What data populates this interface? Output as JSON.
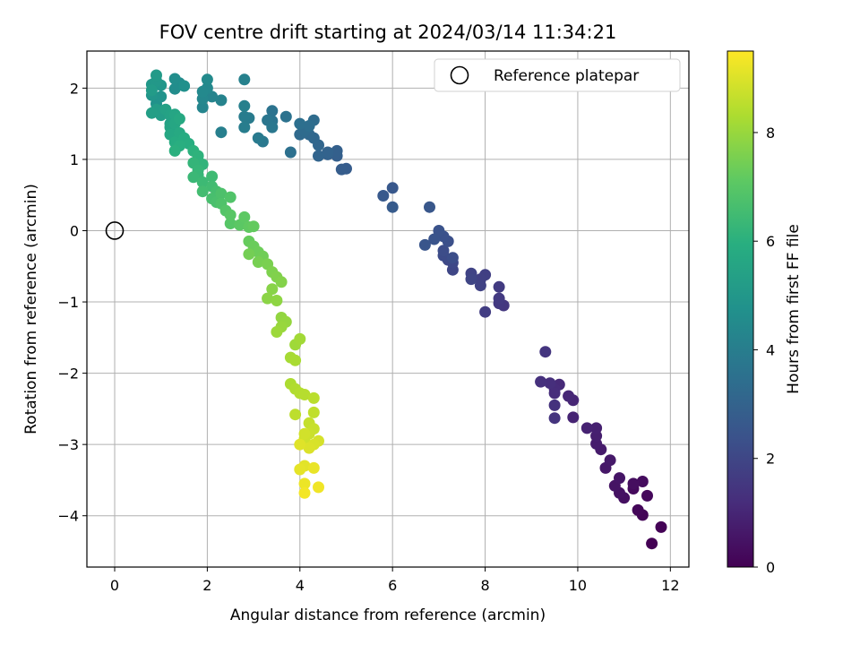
{
  "chart_data": {
    "type": "scatter",
    "title": "FOV centre drift starting at 2024/03/14 11:34:21",
    "xlabel": "Angular distance from reference (arcmin)",
    "ylabel": "Rotation from reference (arcmin)",
    "colorbar_label": "Hours from first FF file",
    "xlim": [
      -0.6,
      12.4
    ],
    "ylim": [
      -4.72,
      2.52
    ],
    "x_ticks": [
      0,
      2,
      4,
      6,
      8,
      10,
      12
    ],
    "y_ticks": [
      -4,
      -3,
      -2,
      -1,
      0,
      1,
      2
    ],
    "colorbar_range": [
      0,
      9.5
    ],
    "colorbar_ticks": [
      0,
      2,
      4,
      6,
      8
    ],
    "colormap": "viridis",
    "grid": true,
    "legend_position": "top-right",
    "reference_point": {
      "name": "Reference platepar",
      "x": 0.0,
      "y": 0.0
    },
    "points": [
      [
        11.6,
        -4.39,
        0.0
      ],
      [
        11.8,
        -4.16,
        0.05
      ],
      [
        11.4,
        -3.99,
        0.1
      ],
      [
        11.3,
        -3.92,
        0.15
      ],
      [
        11.5,
        -3.72,
        0.2
      ],
      [
        11.2,
        -3.62,
        0.25
      ],
      [
        11.4,
        -3.52,
        0.3
      ],
      [
        11.2,
        -3.55,
        0.35
      ],
      [
        11.0,
        -3.75,
        0.4
      ],
      [
        10.9,
        -3.68,
        0.45
      ],
      [
        10.8,
        -3.58,
        0.5
      ],
      [
        10.9,
        -3.47,
        0.55
      ],
      [
        10.6,
        -3.33,
        0.6
      ],
      [
        10.7,
        -3.22,
        0.65
      ],
      [
        10.5,
        -3.07,
        0.7
      ],
      [
        10.4,
        -2.99,
        0.75
      ],
      [
        10.4,
        -2.88,
        0.8
      ],
      [
        10.4,
        -2.77,
        0.85
      ],
      [
        10.2,
        -2.77,
        0.9
      ],
      [
        9.9,
        -2.62,
        0.95
      ],
      [
        9.9,
        -2.38,
        1.0
      ],
      [
        9.8,
        -2.32,
        1.05
      ],
      [
        9.6,
        -2.16,
        1.1
      ],
      [
        9.5,
        -2.22,
        1.15
      ],
      [
        9.5,
        -2.28,
        1.2
      ],
      [
        9.4,
        -2.14,
        1.25
      ],
      [
        9.2,
        -2.12,
        1.3
      ],
      [
        9.5,
        -2.45,
        1.35
      ],
      [
        9.5,
        -2.63,
        1.4
      ],
      [
        9.3,
        -1.7,
        1.45
      ],
      [
        8.4,
        -1.05,
        1.5
      ],
      [
        8.3,
        -1.02,
        1.55
      ],
      [
        8.3,
        -0.95,
        1.6
      ],
      [
        8.3,
        -0.79,
        1.65
      ],
      [
        8.0,
        -1.14,
        1.7
      ],
      [
        8.0,
        -0.62,
        1.75
      ],
      [
        7.9,
        -0.68,
        1.8
      ],
      [
        7.9,
        -0.77,
        1.85
      ],
      [
        7.7,
        -0.6,
        1.9
      ],
      [
        7.7,
        -0.68,
        1.95
      ],
      [
        7.3,
        -0.55,
        2.0
      ],
      [
        7.3,
        -0.45,
        2.05
      ],
      [
        7.2,
        -0.41,
        2.1
      ],
      [
        7.1,
        -0.35,
        2.15
      ],
      [
        7.1,
        -0.28,
        2.2
      ],
      [
        7.3,
        -0.38,
        2.25
      ],
      [
        7.2,
        -0.15,
        2.3
      ],
      [
        7.1,
        -0.08,
        2.35
      ],
      [
        7.0,
        0.0,
        2.4
      ],
      [
        6.9,
        -0.12,
        2.45
      ],
      [
        6.7,
        -0.2,
        2.5
      ],
      [
        6.8,
        0.33,
        2.55
      ],
      [
        6.0,
        0.6,
        2.6
      ],
      [
        5.8,
        0.49,
        2.65
      ],
      [
        6.0,
        0.33,
        2.7
      ],
      [
        5.0,
        0.87,
        2.75
      ],
      [
        4.9,
        0.86,
        2.8
      ],
      [
        4.8,
        1.05,
        2.85
      ],
      [
        4.8,
        1.12,
        2.9
      ],
      [
        4.6,
        1.07,
        2.95
      ],
      [
        4.6,
        1.1,
        3.0
      ],
      [
        4.4,
        1.05,
        3.05
      ],
      [
        4.4,
        1.2,
        3.1
      ],
      [
        4.3,
        1.3,
        3.15
      ],
      [
        4.2,
        1.35,
        3.2
      ],
      [
        4.0,
        1.35,
        3.25
      ],
      [
        4.1,
        1.4,
        3.3
      ],
      [
        4.3,
        1.55,
        3.35
      ],
      [
        4.2,
        1.47,
        3.4
      ],
      [
        4.0,
        1.5,
        3.45
      ],
      [
        3.8,
        1.1,
        3.5
      ],
      [
        3.7,
        1.6,
        3.55
      ],
      [
        3.4,
        1.68,
        3.6
      ],
      [
        3.4,
        1.54,
        3.65
      ],
      [
        3.3,
        1.55,
        3.7
      ],
      [
        3.4,
        1.45,
        3.75
      ],
      [
        3.2,
        1.25,
        3.8
      ],
      [
        3.1,
        1.3,
        3.85
      ],
      [
        2.9,
        1.58,
        3.9
      ],
      [
        2.8,
        1.6,
        3.95
      ],
      [
        2.8,
        1.45,
        4.0
      ],
      [
        2.3,
        1.38,
        4.05
      ],
      [
        2.8,
        1.75,
        4.1
      ],
      [
        2.8,
        2.12,
        4.15
      ],
      [
        2.3,
        1.83,
        4.2
      ],
      [
        2.1,
        1.88,
        4.25
      ],
      [
        1.9,
        1.73,
        4.3
      ],
      [
        1.9,
        1.85,
        4.35
      ],
      [
        2.0,
        2.0,
        4.4
      ],
      [
        1.9,
        1.95,
        4.45
      ],
      [
        2.0,
        2.12,
        4.5
      ],
      [
        1.4,
        2.07,
        4.55
      ],
      [
        1.3,
        1.99,
        4.6
      ],
      [
        1.3,
        2.13,
        4.65
      ],
      [
        1.5,
        2.03,
        4.7
      ],
      [
        0.9,
        1.78,
        4.8
      ],
      [
        1.0,
        1.88,
        4.85
      ],
      [
        0.8,
        1.9,
        4.9
      ],
      [
        1.0,
        2.04,
        4.95
      ],
      [
        0.8,
        2.05,
        5.0
      ],
      [
        0.9,
        2.1,
        5.05
      ],
      [
        0.9,
        2.18,
        5.1
      ],
      [
        0.8,
        1.97,
        5.15
      ],
      [
        0.9,
        1.7,
        5.2
      ],
      [
        1.0,
        1.62,
        5.25
      ],
      [
        0.8,
        1.65,
        5.3
      ],
      [
        1.2,
        1.5,
        5.35
      ],
      [
        1.1,
        1.7,
        5.4
      ],
      [
        1.2,
        1.62,
        5.45
      ],
      [
        1.2,
        1.45,
        5.5
      ],
      [
        1.3,
        1.63,
        5.55
      ],
      [
        1.3,
        1.5,
        5.6
      ],
      [
        1.2,
        1.35,
        5.65
      ],
      [
        1.4,
        1.57,
        5.7
      ],
      [
        1.4,
        1.37,
        5.75
      ],
      [
        1.3,
        1.24,
        5.8
      ],
      [
        1.5,
        1.3,
        5.85
      ],
      [
        1.6,
        1.22,
        5.9
      ],
      [
        1.4,
        1.19,
        5.95
      ],
      [
        1.3,
        1.12,
        6.0
      ],
      [
        1.7,
        1.12,
        6.05
      ],
      [
        1.8,
        1.05,
        6.1
      ],
      [
        1.9,
        0.93,
        6.15
      ],
      [
        1.7,
        0.95,
        6.2
      ],
      [
        1.8,
        0.85,
        6.25
      ],
      [
        1.8,
        0.78,
        6.3
      ],
      [
        1.7,
        0.75,
        6.35
      ],
      [
        1.9,
        0.68,
        6.4
      ],
      [
        2.1,
        0.76,
        6.45
      ],
      [
        2.1,
        0.62,
        6.5
      ],
      [
        1.9,
        0.55,
        6.55
      ],
      [
        2.2,
        0.55,
        6.6
      ],
      [
        2.1,
        0.45,
        6.65
      ],
      [
        2.2,
        0.4,
        6.7
      ],
      [
        2.3,
        0.52,
        6.75
      ],
      [
        2.3,
        0.38,
        6.8
      ],
      [
        2.5,
        0.47,
        6.85
      ],
      [
        2.4,
        0.28,
        6.9
      ],
      [
        2.5,
        0.1,
        6.95
      ],
      [
        2.5,
        0.22,
        7.0
      ],
      [
        2.7,
        0.08,
        7.05
      ],
      [
        2.8,
        0.19,
        7.1
      ],
      [
        2.9,
        0.05,
        7.15
      ],
      [
        3.0,
        0.06,
        7.2
      ],
      [
        2.9,
        -0.15,
        7.25
      ],
      [
        3.0,
        -0.22,
        7.3
      ],
      [
        3.1,
        -0.3,
        7.35
      ],
      [
        3.2,
        -0.36,
        7.4
      ],
      [
        2.9,
        -0.33,
        7.45
      ],
      [
        3.1,
        -0.44,
        7.5
      ],
      [
        3.3,
        -0.47,
        7.55
      ],
      [
        3.4,
        -0.58,
        7.6
      ],
      [
        3.5,
        -0.65,
        7.65
      ],
      [
        3.6,
        -0.72,
        7.7
      ],
      [
        3.4,
        -0.82,
        7.75
      ],
      [
        3.3,
        -0.95,
        7.8
      ],
      [
        3.5,
        -0.98,
        7.85
      ],
      [
        3.6,
        -1.22,
        7.9
      ],
      [
        3.7,
        -1.28,
        7.95
      ],
      [
        3.6,
        -1.35,
        8.0
      ],
      [
        3.5,
        -1.42,
        8.05
      ],
      [
        3.9,
        -1.6,
        8.1
      ],
      [
        4.0,
        -1.52,
        8.15
      ],
      [
        3.8,
        -1.78,
        8.2
      ],
      [
        3.9,
        -1.82,
        8.25
      ],
      [
        3.8,
        -2.15,
        8.3
      ],
      [
        3.9,
        -2.22,
        8.35
      ],
      [
        4.0,
        -2.28,
        8.4
      ],
      [
        4.1,
        -2.3,
        8.45
      ],
      [
        4.3,
        -2.35,
        8.5
      ],
      [
        3.9,
        -2.58,
        8.55
      ],
      [
        4.3,
        -2.55,
        8.6
      ],
      [
        4.2,
        -2.7,
        8.65
      ],
      [
        4.3,
        -2.78,
        8.7
      ],
      [
        4.2,
        -2.85,
        8.75
      ],
      [
        4.1,
        -2.92,
        8.8
      ],
      [
        4.1,
        -2.85,
        8.85
      ],
      [
        4.4,
        -2.95,
        8.9
      ],
      [
        4.3,
        -3.0,
        8.95
      ],
      [
        4.2,
        -3.05,
        9.0
      ],
      [
        4.0,
        -3.0,
        9.05
      ],
      [
        4.1,
        -3.3,
        9.1
      ],
      [
        4.0,
        -3.35,
        9.15
      ],
      [
        4.3,
        -3.33,
        9.2
      ],
      [
        4.1,
        -3.55,
        9.25
      ],
      [
        4.4,
        -3.6,
        9.3
      ],
      [
        4.1,
        -3.68,
        9.35
      ]
    ]
  }
}
